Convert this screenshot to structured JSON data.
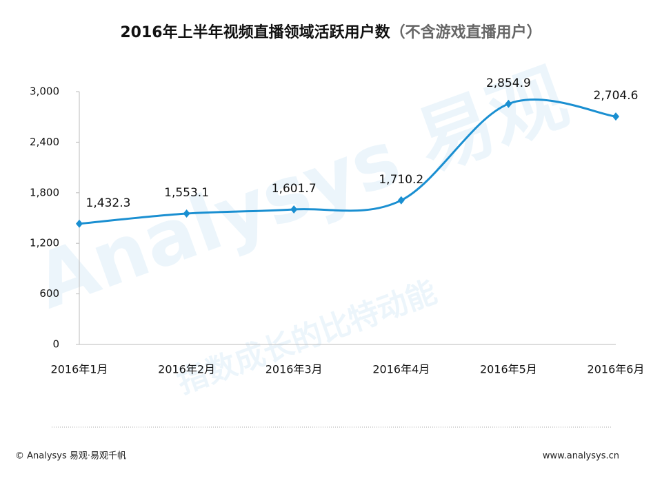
{
  "chart_data": {
    "type": "line",
    "title": "2016年上半年视频直播领域活跃用户数",
    "subtitle": "（不含游戏直播用户）",
    "categories": [
      "2016年1月",
      "2016年2月",
      "2016年3月",
      "2016年4月",
      "2016年5月",
      "2016年6月"
    ],
    "series": [
      {
        "color": "#1a8fd1",
        "values": [
          1432.3,
          1553.1,
          1601.7,
          1710.2,
          2854.9,
          2704.6
        ],
        "value_labels": [
          "1,432.3",
          "1,553.1",
          "1,601.7",
          "1,710.2",
          "2,854.9",
          "2,704.6"
        ]
      }
    ],
    "ylim": [
      0,
      3000
    ],
    "yticks": [
      0,
      600,
      {
        "value": 1200,
        "label": "1,200"
      },
      {
        "value": 1800,
        "label": "1,800"
      },
      {
        "value": 2400,
        "label": "2,400"
      },
      {
        "value": 3000,
        "label": "3,000"
      }
    ],
    "smooth": true,
    "watermark": [
      "Analysys 易观",
      "指数成长的比特动能"
    ]
  },
  "footer": {
    "left": "© Analysys 易观·易观千帆",
    "right": "www.analysys.cn"
  }
}
